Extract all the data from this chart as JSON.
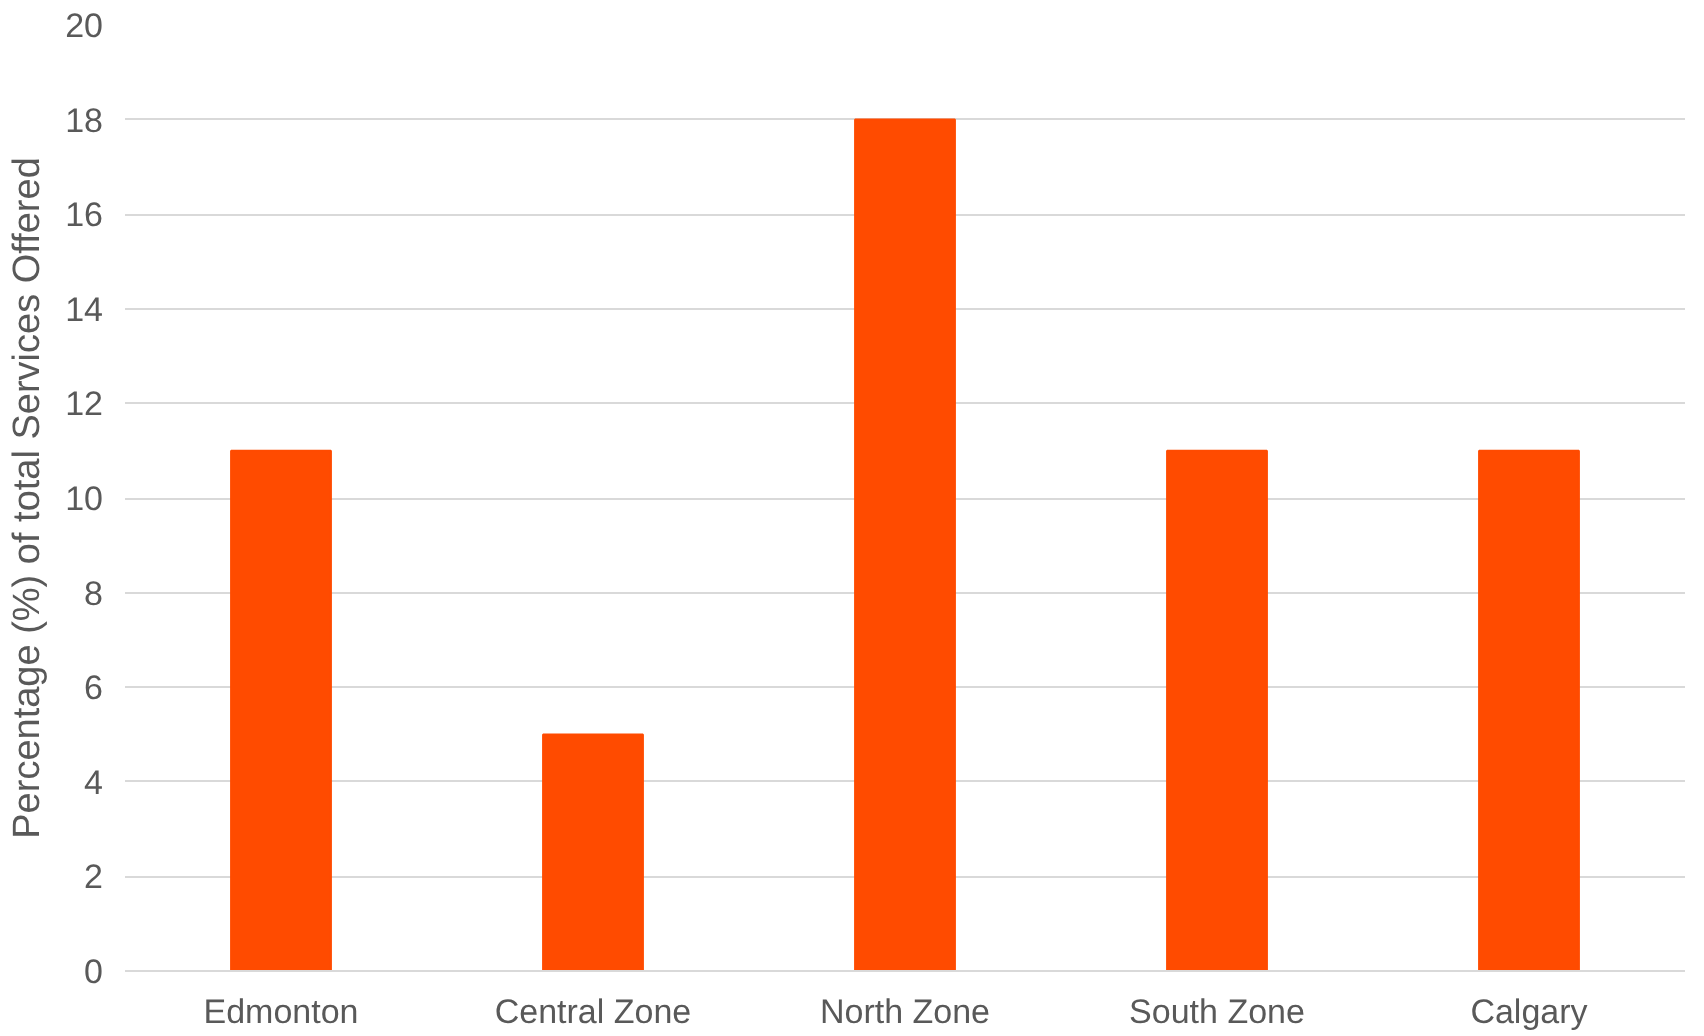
{
  "chart_data": {
    "type": "bar",
    "ylabel": "Percentage (%) of total Services Offered",
    "categories": [
      "Edmonton",
      "Central Zone",
      "North Zone",
      "South Zone",
      "Calgary"
    ],
    "values": [
      11,
      5,
      18,
      11,
      11
    ],
    "color": "#ff4b00",
    "ylim": [
      0,
      20
    ],
    "yticks": [
      0,
      2,
      4,
      6,
      8,
      10,
      12,
      14,
      16,
      18,
      20
    ],
    "grid": "y"
  }
}
